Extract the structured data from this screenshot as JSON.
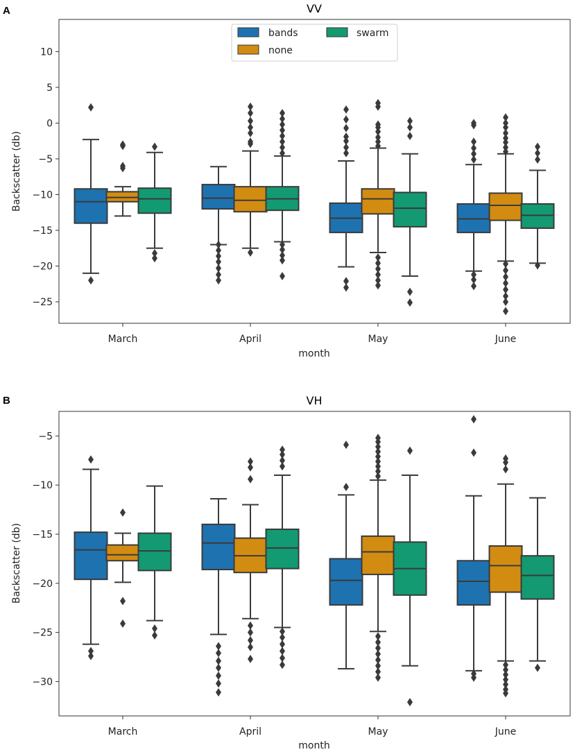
{
  "chart_data": [
    {
      "panel": "A",
      "type": "box",
      "title": "VV",
      "xlabel": "month",
      "ylabel": "Backscatter (db)",
      "ylim": [
        -28,
        14.5
      ],
      "yticks": [
        10,
        5,
        0,
        -5,
        -10,
        -15,
        -20,
        -25
      ],
      "ytick_labels": [
        "10",
        "5",
        "0",
        "−5",
        "−10",
        "−15",
        "−20",
        "−25"
      ],
      "categories": [
        "March",
        "April",
        "May",
        "June"
      ],
      "legend": {
        "placement": "upper-center",
        "entries": [
          "bands",
          "swarm",
          "none"
        ]
      },
      "series": [
        {
          "name": "bands",
          "color": "#1f72b0",
          "boxes": [
            {
              "q1": -14.0,
              "median": -11.0,
              "q3": -9.2,
              "wlo": -21.0,
              "whi": -2.3,
              "fliers": [
                2.2,
                -22.0
              ]
            },
            {
              "q1": -12.0,
              "median": -10.5,
              "q3": -8.6,
              "wlo": -17.0,
              "whi": -6.1,
              "fliers": [
                -17.0,
                -17.8,
                -18.6,
                -19.4,
                -20.3,
                -21.2,
                -22.0
              ]
            },
            {
              "q1": -15.3,
              "median": -13.3,
              "q3": -11.2,
              "wlo": -20.1,
              "whi": -5.3,
              "fliers": [
                1.9,
                0.5,
                -0.7,
                -1.9,
                -2.5,
                -3.4,
                -4.2,
                -22.1,
                -23.0
              ]
            },
            {
              "q1": -15.3,
              "median": -13.4,
              "q3": -11.3,
              "wlo": -20.7,
              "whi": -5.8,
              "fliers": [
                0.0,
                -0.3,
                -2.6,
                -3.5,
                -4.3,
                -5.1,
                -21.2,
                -21.9,
                -22.8
              ]
            }
          ]
        },
        {
          "name": "none",
          "color": "#d28c12",
          "boxes": [
            {
              "q1": -11.0,
              "median": -10.4,
              "q3": -9.6,
              "wlo": -13.0,
              "whi": -8.9,
              "fliers": [
                -3.0,
                -3.2,
                -6.0,
                -6.3
              ]
            },
            {
              "q1": -12.4,
              "median": -10.8,
              "q3": -8.9,
              "wlo": -17.5,
              "whi": -3.9,
              "fliers": [
                2.3,
                1.4,
                0.3,
                -0.6,
                -1.4,
                -2.6,
                -2.9,
                -18.1
              ]
            },
            {
              "q1": -12.7,
              "median": -10.6,
              "q3": -9.2,
              "wlo": -18.1,
              "whi": -3.5,
              "fliers": [
                2.8,
                2.3,
                -0.2,
                -0.6,
                -1.2,
                -2.0,
                -2.6,
                -3.2,
                -18.8,
                -19.6,
                -20.4,
                -21.2,
                -22.0,
                -22.7
              ]
            },
            {
              "q1": -13.6,
              "median": -11.5,
              "q3": -9.8,
              "wlo": -19.3,
              "whi": -4.3,
              "fliers": [
                0.8,
                0.0,
                -0.6,
                -1.4,
                -2.1,
                -2.7,
                -3.4,
                -4.0,
                -19.7,
                -20.6,
                -21.5,
                -22.4,
                -23.3,
                -24.2,
                -25.0,
                -26.3
              ]
            }
          ]
        },
        {
          "name": "swarm",
          "color": "#139a72",
          "boxes": [
            {
              "q1": -12.6,
              "median": -10.6,
              "q3": -9.1,
              "wlo": -17.5,
              "whi": -4.1,
              "fliers": [
                -3.3,
                -18.2,
                -18.9
              ]
            },
            {
              "q1": -12.2,
              "median": -10.6,
              "q3": -8.9,
              "wlo": -16.6,
              "whi": -4.6,
              "fliers": [
                1.4,
                0.6,
                -0.2,
                -1.0,
                -1.8,
                -2.6,
                -3.4,
                -4.2,
                -17.0,
                -17.7,
                -18.5,
                -19.2,
                -21.4
              ]
            },
            {
              "q1": -14.5,
              "median": -11.9,
              "q3": -9.7,
              "wlo": -21.4,
              "whi": -4.3,
              "fliers": [
                0.3,
                -0.6,
                -1.8,
                -23.6,
                -25.1
              ]
            },
            {
              "q1": -14.7,
              "median": -12.9,
              "q3": -11.3,
              "wlo": -19.6,
              "whi": -6.6,
              "fliers": [
                -3.3,
                -4.2,
                -5.1,
                -19.9
              ]
            }
          ]
        }
      ]
    },
    {
      "panel": "B",
      "type": "box",
      "title": "VH",
      "xlabel": "month",
      "ylabel": "Backscatter (db)",
      "ylim": [
        -33.5,
        -2.5
      ],
      "yticks": [
        -5,
        -10,
        -15,
        -20,
        -25,
        -30
      ],
      "ytick_labels": [
        "−5",
        "−10",
        "−15",
        "−20",
        "−25",
        "−30"
      ],
      "categories": [
        "March",
        "April",
        "May",
        "June"
      ],
      "series": [
        {
          "name": "bands",
          "color": "#1f72b0",
          "boxes": [
            {
              "q1": -19.6,
              "median": -16.6,
              "q3": -14.8,
              "wlo": -26.2,
              "whi": -8.4,
              "fliers": [
                -7.4,
                -26.9,
                -27.4
              ]
            },
            {
              "q1": -18.6,
              "median": -15.9,
              "q3": -14.0,
              "wlo": -25.2,
              "whi": -11.4,
              "fliers": [
                -26.4,
                -27.1,
                -27.9,
                -28.6,
                -29.4,
                -30.2,
                -31.1
              ]
            },
            {
              "q1": -22.2,
              "median": -19.7,
              "q3": -17.5,
              "wlo": -28.7,
              "whi": -11.0,
              "fliers": [
                -5.9,
                -10.2
              ]
            },
            {
              "q1": -22.2,
              "median": -19.8,
              "q3": -17.7,
              "wlo": -28.9,
              "whi": -11.1,
              "fliers": [
                -3.3,
                -6.7,
                -29.2,
                -29.6
              ]
            }
          ]
        },
        {
          "name": "none",
          "color": "#d28c12",
          "boxes": [
            {
              "q1": -17.7,
              "median": -17.1,
              "q3": -16.1,
              "wlo": -19.9,
              "whi": -14.9,
              "fliers": [
                -12.8,
                -21.8,
                -24.1
              ]
            },
            {
              "q1": -18.9,
              "median": -17.2,
              "q3": -15.4,
              "wlo": -23.6,
              "whi": -12.0,
              "fliers": [
                -7.6,
                -8.2,
                -9.4,
                -24.3,
                -25.0,
                -25.8,
                -26.5,
                -27.7
              ]
            },
            {
              "q1": -19.1,
              "median": -16.8,
              "q3": -15.2,
              "wlo": -24.9,
              "whi": -9.5,
              "fliers": [
                -5.2,
                -5.6,
                -6.1,
                -6.6,
                -7.1,
                -7.6,
                -8.1,
                -8.6,
                -9.1,
                -25.4,
                -26.0,
                -26.6,
                -27.2,
                -27.8,
                -28.4,
                -29.0,
                -29.6
              ]
            },
            {
              "q1": -20.9,
              "median": -18.2,
              "q3": -16.2,
              "wlo": -27.9,
              "whi": -9.9,
              "fliers": [
                -7.3,
                -7.7,
                -8.4,
                -28.3,
                -28.8,
                -29.3,
                -29.8,
                -30.3,
                -30.8,
                -31.2
              ]
            }
          ]
        },
        {
          "name": "swarm",
          "color": "#139a72",
          "boxes": [
            {
              "q1": -18.7,
              "median": -16.7,
              "q3": -14.9,
              "wlo": -23.8,
              "whi": -10.1,
              "fliers": [
                -24.6,
                -25.3
              ]
            },
            {
              "q1": -18.5,
              "median": -16.4,
              "q3": -14.5,
              "wlo": -24.5,
              "whi": -9.0,
              "fliers": [
                -6.4,
                -6.9,
                -7.5,
                -8.1,
                -24.9,
                -25.5,
                -26.2,
                -26.9,
                -27.6,
                -28.3
              ]
            },
            {
              "q1": -21.2,
              "median": -18.5,
              "q3": -15.8,
              "wlo": -28.4,
              "whi": -9.0,
              "fliers": [
                -6.5,
                -32.1
              ]
            },
            {
              "q1": -21.6,
              "median": -19.2,
              "q3": -17.2,
              "wlo": -27.9,
              "whi": -11.3,
              "fliers": [
                -28.6
              ]
            }
          ]
        }
      ]
    }
  ]
}
